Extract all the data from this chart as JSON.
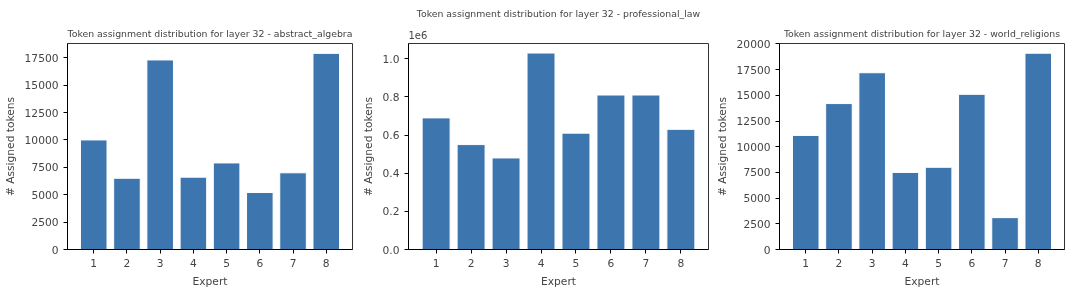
{
  "chart_data": [
    {
      "type": "bar",
      "title": "Token assignment distribution for layer 32 - abstract_algebra",
      "xlabel": "Expert",
      "ylabel": "# Assigned tokens",
      "categories": [
        "1",
        "2",
        "3",
        "4",
        "5",
        "6",
        "7",
        "8"
      ],
      "values": [
        10000,
        6500,
        17300,
        6600,
        7900,
        5200,
        7000,
        17900
      ],
      "color": "#3d76ae",
      "ylim": [
        0,
        18800
      ],
      "yticks": [
        0,
        2500,
        5000,
        7500,
        10000,
        12500,
        15000,
        17500
      ],
      "grid": false
    },
    {
      "type": "bar",
      "title": "Token assignment distribution for layer 32 - professional_law",
      "xlabel": "Expert",
      "ylabel": "# Assigned tokens",
      "categories": [
        "1",
        "2",
        "3",
        "4",
        "5",
        "6",
        "7",
        "8"
      ],
      "values": [
        0.69,
        0.55,
        0.48,
        1.03,
        0.61,
        0.81,
        0.81,
        0.63
      ],
      "color": "#3d76ae",
      "ylim": [
        0,
        1.08
      ],
      "yticks": [
        {
          "value": 0,
          "label": "0.0"
        },
        0.2,
        0.4,
        0.6,
        0.8,
        {
          "value": 1,
          "label": "1.0"
        }
      ],
      "grid": false,
      "annotations": [
        "1e6"
      ]
    },
    {
      "type": "bar",
      "title": "Token assignment distribution for layer 32 - world_religions",
      "xlabel": "Expert",
      "ylabel": "# Assigned tokens",
      "categories": [
        "1",
        "2",
        "3",
        "4",
        "5",
        "6",
        "7",
        "8"
      ],
      "values": [
        11100,
        14200,
        17200,
        7500,
        8000,
        15100,
        3100,
        19100
      ],
      "color": "#3d76ae",
      "ylim": [
        0,
        20045
      ],
      "yticks": [
        0,
        2500,
        5000,
        7500,
        10000,
        12500,
        15000,
        17500,
        20000
      ],
      "grid": false
    }
  ]
}
